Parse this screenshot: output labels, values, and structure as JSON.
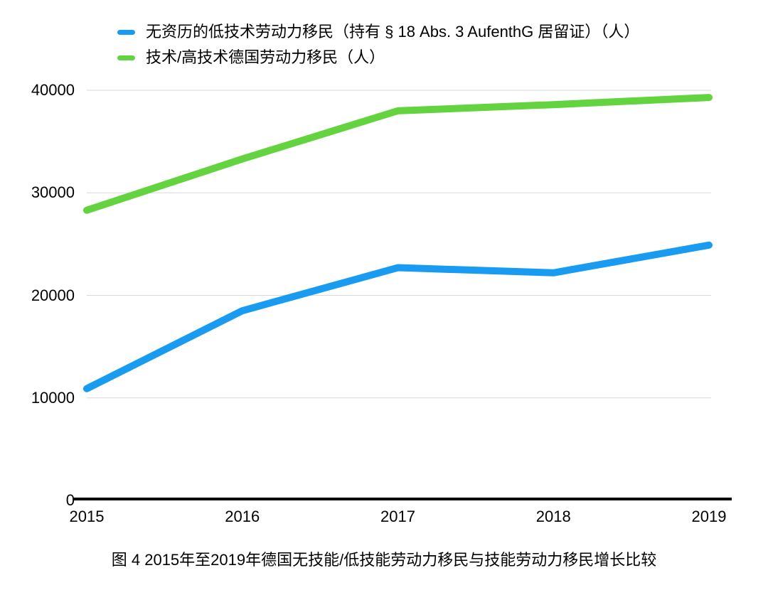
{
  "legend": {
    "items": [
      {
        "label": "无资历的低技术劳动力移民（持有 § 18 Abs. 3 AufenthG 居留证）（人）",
        "color": "#189BF0"
      },
      {
        "label": "技术/高技术德国劳动力移民（人）",
        "color": "#63D33F"
      }
    ]
  },
  "chart_data": {
    "type": "line",
    "categories": [
      "2015",
      "2016",
      "2017",
      "2018",
      "2019"
    ],
    "series": [
      {
        "name": "无资历的低技术劳动力移民（持有 § 18 Abs. 3 AufenthG 居留证）（人）",
        "color": "#189BF0",
        "values": [
          10900,
          18500,
          22700,
          22200,
          24900
        ]
      },
      {
        "name": "技术/高技术德国劳动力移民（人）",
        "color": "#63D33F",
        "values": [
          28300,
          33300,
          38000,
          38600,
          39300
        ]
      }
    ],
    "xlabel": "",
    "ylabel": "",
    "ylim": [
      0,
      40000
    ],
    "yticks": [
      0,
      10000,
      20000,
      30000,
      40000
    ],
    "grid": true,
    "gridline_color": "#D8D8D8",
    "axis_color": "#000000",
    "legend_position": "top-left"
  },
  "caption": "图 4 2015年至2019年德国无技能/低技能劳动力移民与技能劳动力移民增长比较"
}
